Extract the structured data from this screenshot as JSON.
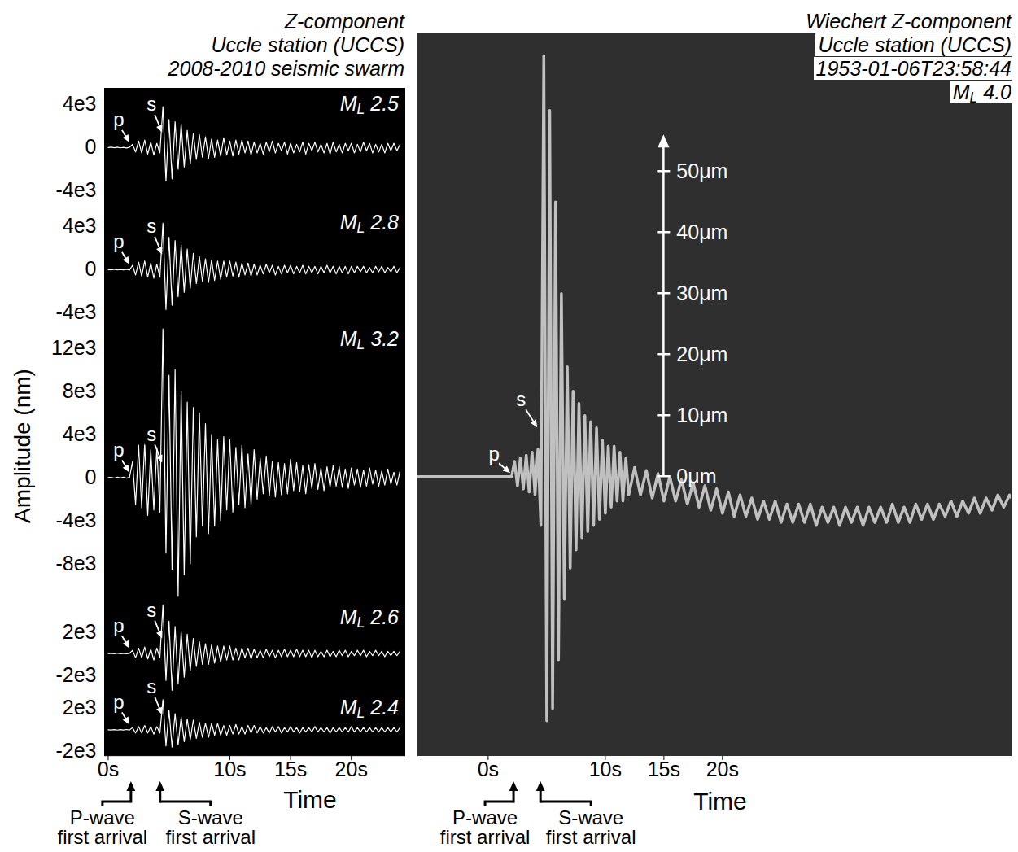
{
  "chart_data": [
    {
      "type": "line",
      "title": [
        "Z-component",
        "Uccle station (UCCS)",
        "2008-2010 seismic swarm"
      ],
      "ylabel": "Amplitude (nm)",
      "xlabel": "Time",
      "xlim": [
        -0.3,
        24.4
      ],
      "xticks": [
        {
          "value": 0,
          "label": "0s"
        },
        {
          "value": 10,
          "label": "10s"
        },
        {
          "value": 15,
          "label": "15s"
        },
        {
          "value": 20,
          "label": "20s"
        }
      ],
      "magnitude_symbol": "M",
      "magnitude_subscript": "L",
      "phase_labels": [
        "p",
        "s"
      ],
      "arrival_labels": [
        [
          "P-wave",
          "first arrival"
        ],
        [
          "S-wave",
          "first arrival"
        ]
      ],
      "p_arrival": 1.9,
      "s_arrival": 4.3,
      "x": [
        0,
        0.25,
        0.5,
        0.75,
        1,
        1.25,
        1.5,
        1.75,
        2,
        2.25,
        2.5,
        2.75,
        3,
        3.25,
        3.5,
        3.75,
        4,
        4.25,
        4.5,
        4.75,
        5,
        5.25,
        5.5,
        5.75,
        6,
        6.25,
        6.5,
        6.75,
        7,
        7.25,
        7.5,
        7.75,
        8,
        8.25,
        8.5,
        8.75,
        9,
        9.25,
        9.5,
        9.75,
        10,
        10.25,
        10.5,
        10.75,
        11,
        11.25,
        11.5,
        11.75,
        12,
        12.25,
        12.5,
        12.75,
        13,
        13.25,
        13.5,
        13.75,
        14,
        14.25,
        14.5,
        14.75,
        15,
        15.25,
        15.5,
        15.75,
        16,
        16.25,
        16.5,
        16.75,
        17,
        17.25,
        17.5,
        17.75,
        18,
        18.25,
        18.5,
        18.75,
        19,
        19.25,
        19.5,
        19.75,
        20,
        20.25,
        20.5,
        20.75,
        21,
        21.25,
        21.5,
        21.75,
        22,
        22.25,
        22.5,
        22.75,
        23,
        23.25,
        23.5,
        23.75,
        24
      ],
      "traces": [
        {
          "magnitude": 2.5,
          "color": "#ffffff",
          "p": 1.9,
          "s": 4.4,
          "ylim": [
            -5500,
            5500
          ],
          "yticks": [
            {
              "value": 4000,
              "label": "4e3"
            },
            0,
            {
              "value": -4000,
              "label": "-4e3"
            }
          ],
          "values": [
            0,
            30,
            -20,
            40,
            -30,
            20,
            -40,
            30,
            300,
            -400,
            600,
            -500,
            700,
            -600,
            500,
            -700,
            400,
            -500,
            3800,
            -3100,
            2600,
            -2900,
            2400,
            -2000,
            2200,
            -1800,
            1600,
            -1500,
            1300,
            -1100,
            1200,
            -900,
            1000,
            -1000,
            800,
            -900,
            700,
            -800,
            900,
            -700,
            600,
            -800,
            700,
            -600,
            700,
            -500,
            600,
            -700,
            500,
            -500,
            400,
            -600,
            500,
            -400,
            600,
            -500,
            400,
            -300,
            500,
            -600,
            400,
            -500,
            300,
            -400,
            500,
            -600,
            400,
            -300,
            500,
            -400,
            300,
            -500,
            400,
            -600,
            500,
            -400,
            300,
            -500,
            400,
            -300,
            400,
            -500,
            300,
            -400,
            500,
            -300,
            400,
            -500,
            300,
            -400,
            300,
            -500,
            400,
            -300,
            400,
            -300,
            300
          ]
        },
        {
          "magnitude": 2.8,
          "color": "#ffffff",
          "p": 1.9,
          "s": 4.4,
          "ylim": [
            -5000,
            5800
          ],
          "yticks": [
            {
              "value": 4000,
              "label": "4e3"
            },
            0,
            {
              "value": -4000,
              "label": "-4e3"
            }
          ],
          "values": [
            0,
            -20,
            30,
            -30,
            20,
            -20,
            30,
            -40,
            400,
            -500,
            700,
            -600,
            800,
            -700,
            600,
            -800,
            500,
            -700,
            4300,
            -3700,
            3000,
            -3300,
            2700,
            -2500,
            2300,
            -2100,
            1900,
            -1700,
            1500,
            -1300,
            1200,
            -1100,
            1000,
            -1200,
            900,
            -1000,
            800,
            -900,
            800,
            -700,
            800,
            -600,
            700,
            -700,
            600,
            -500,
            600,
            -600,
            500,
            -500,
            400,
            -400,
            500,
            -300,
            400,
            -500,
            300,
            -400,
            400,
            -300,
            400,
            -400,
            300,
            -300,
            400,
            -400,
            300,
            -300,
            300,
            -400,
            300,
            -300,
            400,
            -300,
            300,
            -400,
            300,
            -300,
            300,
            -400,
            300,
            -300,
            300,
            -200,
            300,
            -300,
            200,
            -300,
            300,
            -200,
            300,
            -300,
            200,
            -200,
            300,
            -300,
            200
          ]
        },
        {
          "magnitude": 3.2,
          "color": "#ffffff",
          "p": 1.9,
          "s": 4.4,
          "ylim": [
            -11500,
            14300
          ],
          "yticks": [
            {
              "value": 12000,
              "label": "12e3"
            },
            {
              "value": 8000,
              "label": "8e3"
            },
            {
              "value": 4000,
              "label": "4e3"
            },
            0,
            {
              "value": -4000,
              "label": "-4e3"
            },
            {
              "value": -8000,
              "label": "-8e3"
            }
          ],
          "values": [
            0,
            30,
            -40,
            50,
            -30,
            40,
            -50,
            30,
            1500,
            -2500,
            3000,
            -2800,
            3200,
            -3500,
            2600,
            -3000,
            2800,
            -3200,
            13800,
            -7000,
            9500,
            -8500,
            10000,
            -11000,
            8000,
            -9000,
            7000,
            -8000,
            6500,
            -5500,
            6000,
            -4500,
            5000,
            -5200,
            4000,
            -4500,
            3500,
            -4000,
            3800,
            -3000,
            3500,
            -3200,
            2800,
            -2500,
            3000,
            -2800,
            2200,
            -2500,
            2600,
            -2000,
            1800,
            -1500,
            2000,
            -1700,
            1500,
            -1800,
            1400,
            -1600,
            1300,
            -1500,
            1700,
            -1200,
            1400,
            -1300,
            1100,
            -1500,
            1200,
            -1000,
            1300,
            -1100,
            900,
            -1200,
            1000,
            -900,
            1100,
            -800,
            1000,
            -900,
            800,
            -1000,
            900,
            -700,
            800,
            -900,
            700,
            -800,
            900,
            -600,
            700,
            -800,
            600,
            -700,
            800,
            -600,
            500,
            -700,
            600
          ]
        },
        {
          "magnitude": 2.6,
          "color": "#ffffff",
          "p": 1.9,
          "s": 4.4,
          "ylim": [
            -3600,
            4800
          ],
          "yticks": [
            {
              "value": 2000,
              "label": "2e3"
            },
            {
              "value": -2000,
              "label": "-2e3"
            }
          ],
          "values": [
            0,
            20,
            -20,
            30,
            -20,
            20,
            -30,
            20,
            300,
            -400,
            500,
            -400,
            600,
            -500,
            400,
            -600,
            500,
            -400,
            4500,
            -2500,
            3000,
            -3400,
            2500,
            -2800,
            2000,
            -2200,
            1800,
            -1600,
            1400,
            -1200,
            1100,
            -1000,
            900,
            -1000,
            800,
            -900,
            700,
            -800,
            700,
            -600,
            700,
            -600,
            500,
            -600,
            500,
            -400,
            500,
            -500,
            400,
            -400,
            300,
            -400,
            400,
            -300,
            300,
            -400,
            300,
            -300,
            400,
            -300,
            300,
            -300,
            400,
            -300,
            300,
            -300,
            300,
            -400,
            300,
            -300,
            200,
            -300,
            300,
            -300,
            200,
            -300,
            300,
            -200,
            300,
            -300,
            200,
            -200,
            300,
            -200,
            300,
            -300,
            200,
            -200,
            300,
            -200,
            200,
            -300,
            200,
            -200,
            200,
            -200,
            200
          ]
        },
        {
          "magnitude": 2.4,
          "color": "#ffffff",
          "p": 1.9,
          "s": 4.4,
          "ylim": [
            -2400,
            3500
          ],
          "yticks": [
            {
              "value": 2000,
              "label": "2e3"
            },
            {
              "value": -2000,
              "label": "-2e3"
            }
          ],
          "values": [
            0,
            -20,
            20,
            -30,
            20,
            -20,
            30,
            -20,
            200,
            -300,
            300,
            -300,
            400,
            -300,
            300,
            -400,
            300,
            -300,
            2800,
            -1500,
            1800,
            -1600,
            1500,
            -1400,
            1200,
            -1100,
            1000,
            -900,
            900,
            -800,
            700,
            -700,
            600,
            -700,
            600,
            -500,
            600,
            -500,
            400,
            -500,
            400,
            -400,
            500,
            -400,
            300,
            -400,
            400,
            -300,
            400,
            -300,
            300,
            -300,
            200,
            -300,
            300,
            -200,
            300,
            -300,
            200,
            -200,
            300,
            -200,
            200,
            -300,
            200,
            -200,
            200,
            -200,
            300,
            -200,
            200,
            -200,
            200,
            -300,
            200,
            -200,
            200,
            -200,
            200,
            -200,
            300,
            -200,
            200,
            -200,
            200,
            -200,
            200,
            -200,
            200,
            -200,
            200,
            -200,
            200,
            -200,
            200,
            -200,
            200
          ]
        }
      ]
    },
    {
      "type": "line",
      "title": [
        "Wiechert Z-component",
        "Uccle station (UCCS)",
        "1953-01-06T23:58:44"
      ],
      "magnitude": {
        "value": 4.0,
        "label": "4.0"
      },
      "magnitude_symbol": "M",
      "magnitude_subscript": "L",
      "phase_labels": [
        "p",
        "s"
      ],
      "arrival_labels": [
        [
          "P-wave",
          "first arrival"
        ],
        [
          "S-wave",
          "first arrival"
        ]
      ],
      "xlabel": "Time",
      "xlim": [
        -6,
        44.7
      ],
      "xticks": [
        {
          "value": 0,
          "label": "0s"
        },
        {
          "value": 10,
          "label": "10s"
        },
        {
          "value": 15,
          "label": "15s"
        },
        {
          "value": 20,
          "label": "20s"
        }
      ],
      "ylim": [
        -45.7,
        72.7
      ],
      "tick_labels": "x",
      "scale_bar": {
        "x": 15,
        "top": 56,
        "ticks": [
          {
            "value": 0,
            "label": "0μm"
          },
          {
            "value": 10,
            "label": "10μm"
          },
          {
            "value": 20,
            "label": "20μm"
          },
          {
            "value": 30,
            "label": "30μm"
          },
          {
            "value": 40,
            "label": "40μm"
          },
          {
            "value": 50,
            "label": "50μm"
          }
        ]
      },
      "p_arrival": 2.2,
      "s_arrival": 4.5,
      "p": 2.2,
      "s": 4.5,
      "color": "#c0c0c0",
      "x": [
        -6,
        -5,
        -4,
        -3,
        -2,
        -1,
        0,
        1,
        2,
        2.25,
        2.5,
        2.75,
        3,
        3.25,
        3.5,
        3.75,
        4,
        4.25,
        4.5,
        4.75,
        5,
        5.25,
        5.5,
        5.75,
        6,
        6.25,
        6.5,
        6.75,
        7,
        7.25,
        7.5,
        7.75,
        8,
        8.25,
        8.5,
        8.75,
        9,
        9.25,
        9.5,
        9.75,
        10,
        10.25,
        10.5,
        10.75,
        11,
        11.25,
        11.5,
        11.75,
        12,
        12.5,
        13,
        13.5,
        14,
        14.5,
        15,
        15.5,
        16,
        16.5,
        17,
        17.5,
        18,
        18.5,
        19,
        19.5,
        20,
        20.5,
        21,
        21.5,
        22,
        22.5,
        23,
        23.5,
        24,
        24.5,
        25,
        25.5,
        26,
        26.5,
        27,
        27.5,
        28,
        28.5,
        29,
        29.5,
        30,
        30.5,
        31,
        31.5,
        32,
        32.5,
        33,
        33.5,
        34,
        34.5,
        35,
        35.5,
        36,
        36.5,
        37,
        37.5,
        38,
        38.5,
        39,
        39.5,
        40,
        40.5,
        41,
        41.5,
        42,
        42.5,
        43,
        43.5,
        44,
        44.5,
        45
      ],
      "values": [
        0,
        0,
        0,
        0,
        0,
        0,
        0,
        0,
        0,
        2.5,
        -1.5,
        3,
        -2,
        3.5,
        -2.5,
        4,
        -3,
        4.5,
        -8,
        69,
        -40,
        60,
        -38,
        45,
        -30,
        30,
        -20,
        18,
        -15,
        14,
        -12,
        12,
        -10,
        10,
        -9,
        9,
        -8,
        8,
        -7,
        6,
        -6,
        5,
        -5,
        5,
        -4,
        4,
        -4,
        3,
        -3,
        1.5,
        -3,
        1,
        -3.5,
        0.5,
        -4,
        0,
        -4,
        -0.5,
        -4.5,
        -1,
        -5,
        -1.5,
        -5.5,
        -2,
        -6,
        -2.5,
        -6.5,
        -3,
        -6.5,
        -3.5,
        -7,
        -4,
        -7,
        -4,
        -7.5,
        -4.5,
        -7.5,
        -4.5,
        -7.5,
        -4.5,
        -8,
        -5,
        -7.5,
        -5,
        -8,
        -5,
        -7.5,
        -5,
        -8,
        -5,
        -7.5,
        -5,
        -7.5,
        -4.5,
        -7.5,
        -5,
        -7.5,
        -4.5,
        -7,
        -4.5,
        -7,
        -4.5,
        -6.5,
        -4,
        -6.5,
        -4,
        -6,
        -3.5,
        -6,
        -3.5,
        -5.5,
        -3,
        -5,
        -3,
        -4.5
      ]
    }
  ]
}
